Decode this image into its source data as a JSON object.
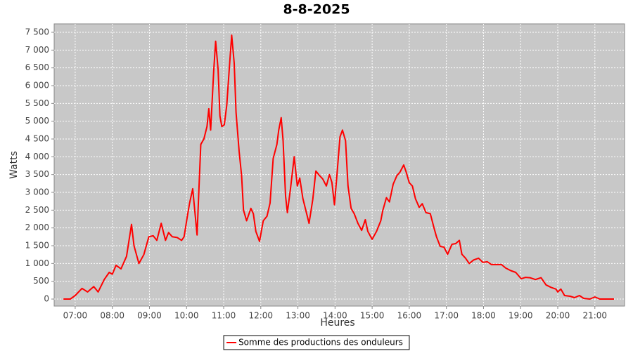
{
  "chart_data": {
    "type": "line",
    "title": "8-8-2025",
    "x_label": "Heures",
    "y_label": "Watts",
    "x": [
      "06:41",
      "06:52",
      "07:00",
      "07:11",
      "07:20",
      "07:30",
      "07:37",
      "07:47",
      "07:55",
      "08:00",
      "08:06",
      "08:14",
      "08:23",
      "08:31",
      "08:35",
      "08:43",
      "08:51",
      "08:59",
      "09:06",
      "09:12",
      "09:19",
      "09:26",
      "09:31",
      "09:37",
      "09:45",
      "09:52",
      "09:56",
      "10:02",
      "10:05",
      "10:10",
      "10:17",
      "10:20",
      "10:23",
      "10:28",
      "10:33",
      "10:36",
      "10:39",
      "10:44",
      "10:47",
      "10:51",
      "10:54",
      "10:57",
      "11:01",
      "11:05",
      "11:09",
      "11:13",
      "11:17",
      "11:20",
      "11:25",
      "11:29",
      "11:32",
      "11:37",
      "11:44",
      "11:48",
      "11:52",
      "11:58",
      "12:04",
      "12:10",
      "12:15",
      "12:20",
      "12:26",
      "12:29",
      "12:33",
      "12:36",
      "12:40",
      "12:43",
      "12:48",
      "12:54",
      "12:59",
      "13:03",
      "13:08",
      "13:12",
      "13:18",
      "13:24",
      "13:29",
      "13:35",
      "13:40",
      "13:46",
      "13:51",
      "13:55",
      "13:59",
      "14:03",
      "14:08",
      "14:12",
      "14:17",
      "14:21",
      "14:26",
      "14:31",
      "14:37",
      "14:43",
      "14:49",
      "14:53",
      "15:00",
      "15:07",
      "15:14",
      "15:17",
      "15:23",
      "15:28",
      "15:34",
      "15:40",
      "15:45",
      "15:51",
      "15:55",
      "16:00",
      "16:05",
      "16:10",
      "16:16",
      "16:21",
      "16:27",
      "16:34",
      "16:40",
      "16:44",
      "16:50",
      "16:56",
      "17:02",
      "17:09",
      "17:15",
      "17:21",
      "17:25",
      "17:31",
      "17:37",
      "17:44",
      "17:52",
      "17:59",
      "18:06",
      "18:13",
      "18:21",
      "18:29",
      "18:36",
      "18:44",
      "18:52",
      "19:01",
      "19:08",
      "19:15",
      "19:24",
      "19:33",
      "19:41",
      "19:49",
      "19:57",
      "20:00",
      "20:05",
      "20:11",
      "20:20",
      "20:27",
      "20:35",
      "20:42",
      "20:52",
      "21:00",
      "21:08",
      "21:31"
    ],
    "series": [
      {
        "name": "Somme des productions des onduleurs",
        "color": "#ff0000",
        "values": [
          0,
          0,
          100,
          300,
          200,
          350,
          200,
          550,
          750,
          700,
          950,
          850,
          1200,
          2100,
          1500,
          1000,
          1250,
          1750,
          1780,
          1650,
          2130,
          1650,
          1870,
          1750,
          1730,
          1650,
          1750,
          2400,
          2700,
          3100,
          1800,
          3080,
          4350,
          4500,
          4850,
          5350,
          4750,
          6430,
          7250,
          6450,
          5150,
          4850,
          4900,
          5450,
          6450,
          7420,
          6630,
          5250,
          4150,
          3470,
          2500,
          2200,
          2550,
          2400,
          1900,
          1620,
          2200,
          2330,
          2700,
          3950,
          4350,
          4750,
          5100,
          4450,
          2900,
          2430,
          3100,
          4000,
          3180,
          3400,
          2830,
          2550,
          2130,
          2800,
          3600,
          3470,
          3380,
          3180,
          3500,
          3280,
          2650,
          3470,
          4560,
          4750,
          4450,
          3180,
          2550,
          2400,
          2130,
          1930,
          2230,
          1900,
          1680,
          1900,
          2200,
          2480,
          2850,
          2730,
          3230,
          3470,
          3570,
          3770,
          3570,
          3270,
          3180,
          2820,
          2580,
          2680,
          2430,
          2400,
          2000,
          1750,
          1480,
          1460,
          1260,
          1540,
          1560,
          1650,
          1260,
          1150,
          1000,
          1100,
          1150,
          1030,
          1050,
          970,
          970,
          970,
          870,
          800,
          750,
          570,
          610,
          600,
          550,
          600,
          400,
          330,
          280,
          200,
          280,
          100,
          80,
          40,
          100,
          20,
          0,
          60,
          0,
          0
        ]
      }
    ],
    "xlim": [
      "06:26",
      "21:48"
    ],
    "xticks": [
      "07:00",
      "08:00",
      "09:00",
      "10:00",
      "11:00",
      "12:00",
      "13:00",
      "14:00",
      "15:00",
      "16:00",
      "17:00",
      "18:00",
      "19:00",
      "20:00",
      "21:00"
    ],
    "ylim": [
      -197,
      7737
    ],
    "yticks": [
      0,
      500,
      {
        "value": 1000,
        "label": "1 000"
      },
      {
        "value": 1500,
        "label": "1 500"
      },
      {
        "value": 2000,
        "label": "2 000"
      },
      {
        "value": 2500,
        "label": "2 500"
      },
      {
        "value": 3000,
        "label": "3 000"
      },
      {
        "value": 3500,
        "label": "3 500"
      },
      {
        "value": 4000,
        "label": "4 000"
      },
      {
        "value": 4500,
        "label": "4 500"
      },
      {
        "value": 5000,
        "label": "5 000"
      },
      {
        "value": 5500,
        "label": "5 500"
      },
      {
        "value": 6000,
        "label": "6 000"
      },
      {
        "value": 6500,
        "label": "6 500"
      },
      {
        "value": 7000,
        "label": "7 000"
      },
      {
        "value": 7500,
        "label": "7 500"
      }
    ],
    "grid": true,
    "legend": "bottom"
  }
}
